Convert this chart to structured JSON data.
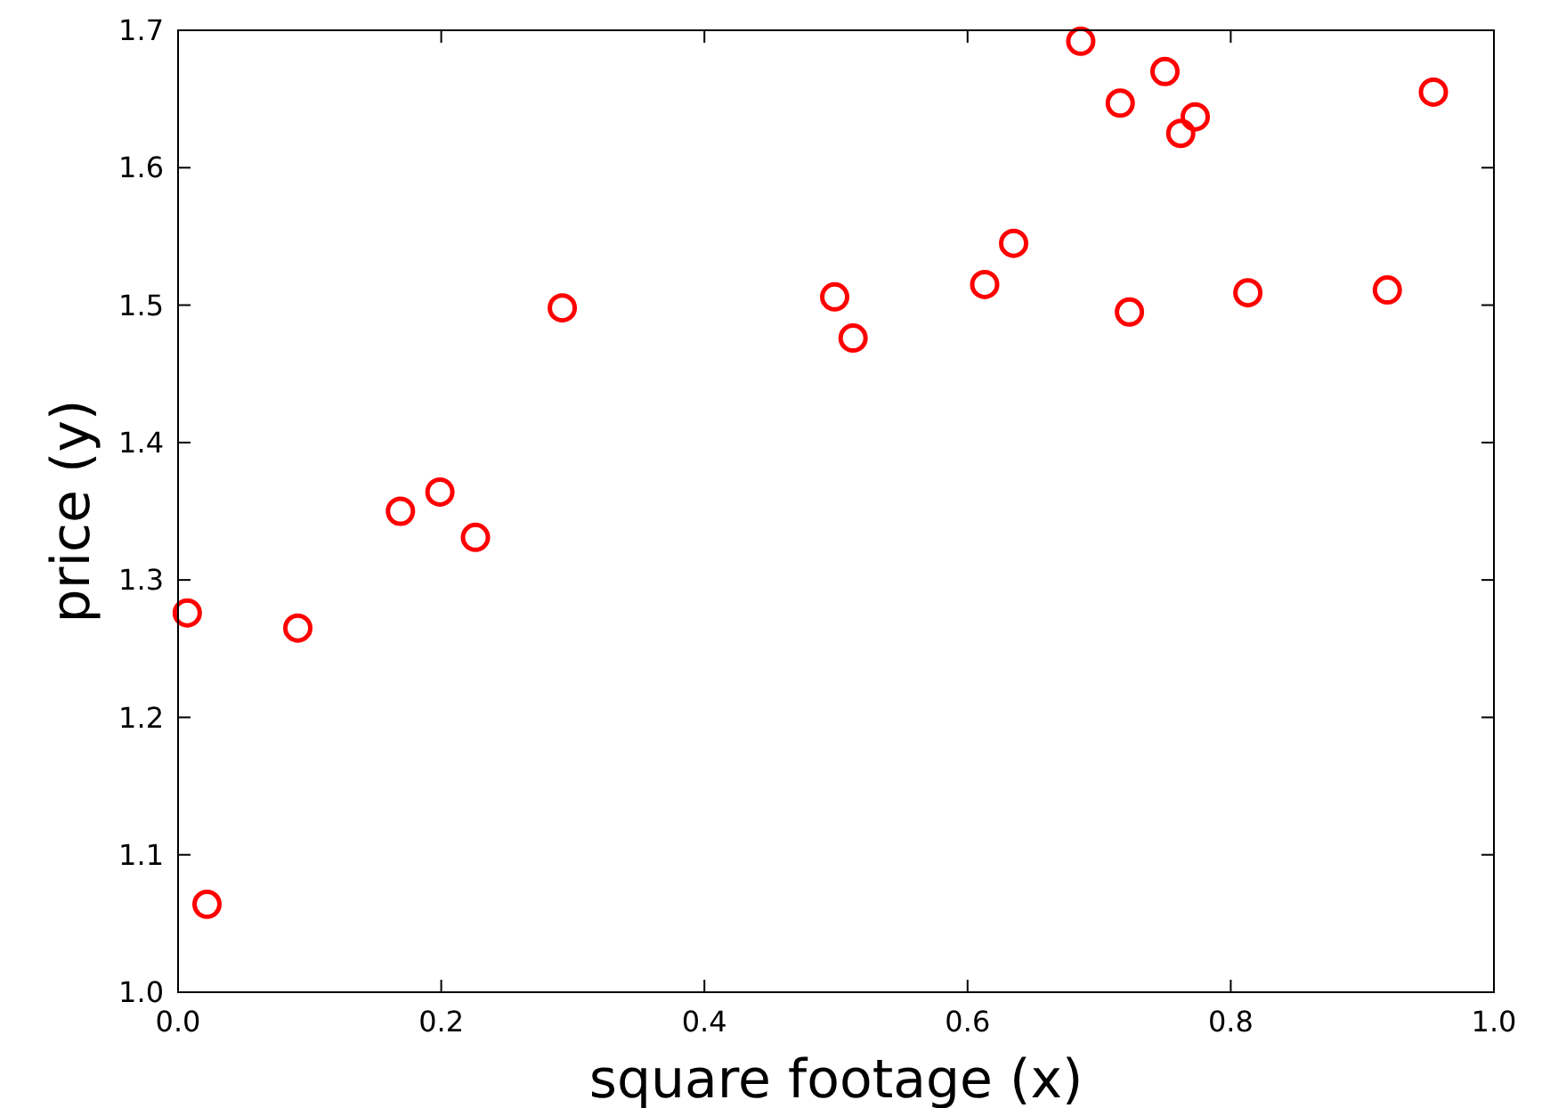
{
  "chart_data": {
    "type": "scatter",
    "xlabel": "square footage (x)",
    "ylabel": "price (y)",
    "x": [
      0.007,
      0.022,
      0.091,
      0.169,
      0.199,
      0.226,
      0.292,
      0.499,
      0.513,
      0.613,
      0.635,
      0.686,
      0.716,
      0.723,
      0.75,
      0.762,
      0.773,
      0.813,
      0.919,
      0.954
    ],
    "series": [
      {
        "color": "#ff0000",
        "values": [
          1.276,
          1.064,
          1.265,
          1.35,
          1.364,
          1.331,
          1.498,
          1.506,
          1.476,
          1.515,
          1.545,
          1.692,
          1.647,
          1.495,
          1.67,
          1.625,
          1.637,
          1.509,
          1.511,
          1.655
        ]
      }
    ],
    "xlim": [
      0,
      1
    ],
    "ylim": [
      1,
      1.7
    ],
    "xticks": [
      {
        "value": 0,
        "label": "0.0"
      },
      0.2,
      0.4,
      0.6,
      0.8,
      {
        "value": 1,
        "label": "1.0"
      }
    ],
    "yticks": [
      {
        "value": 1,
        "label": "1.0"
      },
      1.1,
      1.2,
      1.3,
      1.4,
      1.5,
      1.6,
      1.7
    ],
    "marker": "circle",
    "grid": false
  }
}
